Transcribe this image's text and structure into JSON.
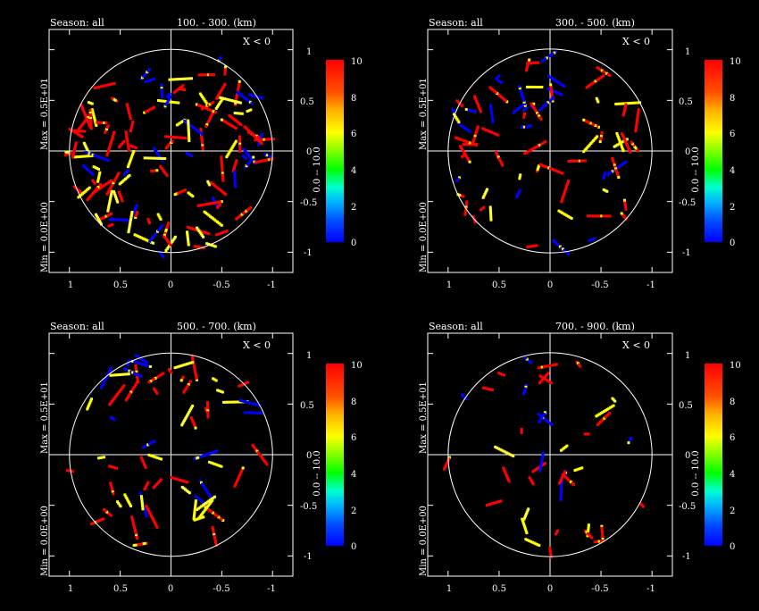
{
  "chart_data": [
    {
      "type": "scatter",
      "season_label": "Season: all",
      "range_label": "100. -   300. (km)",
      "region_label": "X < 0",
      "max_label": "Max = 0.5E+01",
      "min_label": "Min = 0.0E+00",
      "cbar_label": "0.0 -- 10.0",
      "xticks": [
        "1",
        "0.5",
        "0",
        "-0.5",
        "-1"
      ],
      "yticks": [
        "1",
        "0.5",
        "0",
        "-0.5",
        "-1"
      ],
      "cbar_ticks": [
        "10",
        "8",
        "6",
        "4",
        "2",
        "0"
      ],
      "xlim": [
        1.2,
        -1.2
      ],
      "ylim": [
        -1.2,
        1.2
      ],
      "density": 120,
      "seed": 11
    },
    {
      "type": "scatter",
      "season_label": "Season: all",
      "range_label": "300. -   500. (km)",
      "region_label": "X < 0",
      "max_label": "Max = 0.5E+01",
      "min_label": "Min = 0.0E+00",
      "cbar_label": "0.0 -- 10.0",
      "xticks": [
        "1",
        "0.5",
        "0",
        "-0.5",
        "-1"
      ],
      "yticks": [
        "1",
        "0.5",
        "0",
        "-0.5",
        "-1"
      ],
      "cbar_ticks": [
        "10",
        "8",
        "6",
        "4",
        "2",
        "0"
      ],
      "xlim": [
        1.2,
        -1.2
      ],
      "ylim": [
        -1.2,
        1.2
      ],
      "density": 70,
      "seed": 23
    },
    {
      "type": "scatter",
      "season_label": "Season: all",
      "range_label": "500. -   700. (km)",
      "region_label": "X < 0",
      "max_label": "Max = 0.5E+01",
      "min_label": "Min = 0.0E+00",
      "cbar_label": "0.0 -- 10.0",
      "xticks": [
        "1",
        "0.5",
        "0",
        "-0.5",
        "-1"
      ],
      "yticks": [
        "1",
        "0.5",
        "0",
        "-0.5",
        "-1"
      ],
      "cbar_ticks": [
        "10",
        "8",
        "6",
        "4",
        "2",
        "0"
      ],
      "xlim": [
        1.2,
        -1.2
      ],
      "ylim": [
        -1.2,
        1.2
      ],
      "density": 60,
      "seed": 37
    },
    {
      "type": "scatter",
      "season_label": "Season: all",
      "range_label": "700. -   900. (km)",
      "region_label": "X < 0",
      "max_label": "Max = 0.5E+01",
      "min_label": "Min = 0.0E+00",
      "cbar_label": "0.0 -- 10.0",
      "xticks": [
        "1",
        "0.5",
        "0",
        "-0.5",
        "-1"
      ],
      "yticks": [
        "1",
        "0.5",
        "0",
        "-0.5",
        "-1"
      ],
      "cbar_ticks": [
        "10",
        "8",
        "6",
        "4",
        "2",
        "0"
      ],
      "xlim": [
        1.2,
        -1.2
      ],
      "ylim": [
        -1.2,
        1.2
      ],
      "density": 40,
      "seed": 53
    }
  ]
}
